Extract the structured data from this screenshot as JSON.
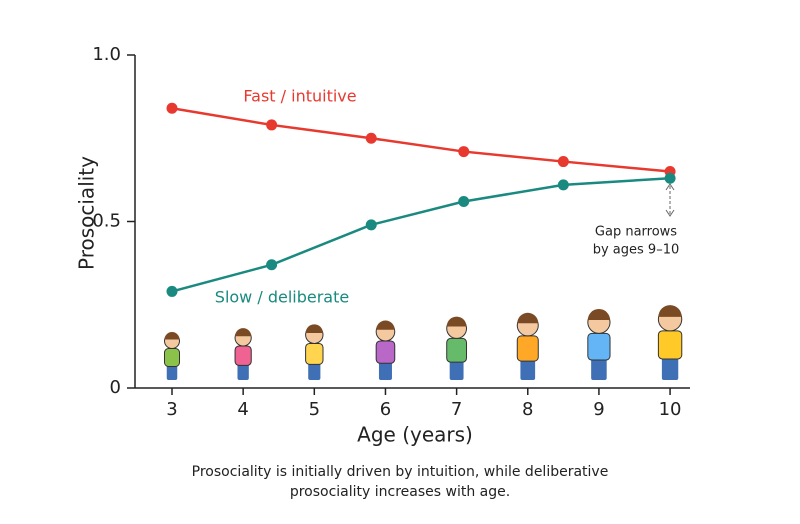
{
  "chart_data": {
    "type": "line",
    "x_label": "Age (years)",
    "y_label": "Prosociality",
    "x": [
      3,
      4.4,
      5.8,
      7.1,
      8.5,
      10
    ],
    "series": [
      {
        "name": "Fast / intuitive",
        "color": "#e8392f",
        "values": [
          0.84,
          0.79,
          0.75,
          0.71,
          0.68,
          0.65
        ]
      },
      {
        "name": "Slow / deliberate",
        "color": "#1a8a80",
        "values": [
          0.29,
          0.37,
          0.49,
          0.56,
          0.61,
          0.63
        ]
      }
    ],
    "xlim": [
      2.48,
      10.28
    ],
    "xticks": [
      3,
      4,
      5,
      6,
      7,
      8,
      9,
      10
    ],
    "ylim": [
      0,
      1
    ],
    "yticks": [
      0,
      0.5,
      {
        "value": 1,
        "label": "1.0"
      }
    ],
    "note": [
      "Gap narrows",
      "by ages 9–10"
    ],
    "caption": "Prosociality is initially driven by intuition, while deliberative prosociality increases with age."
  }
}
